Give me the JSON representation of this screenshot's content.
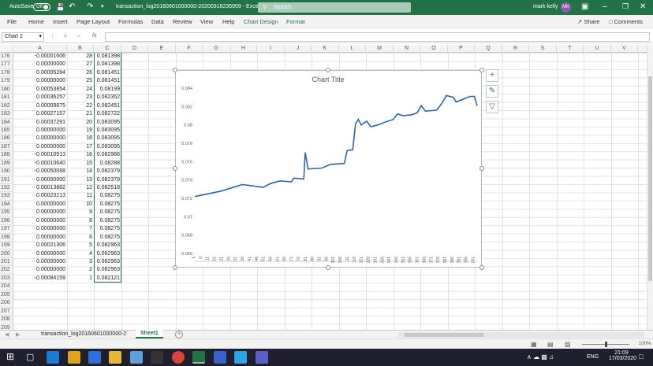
{
  "titlebar": {
    "autosave": "AutoSave",
    "autosave_state": "Off",
    "filename": "transaction_log20160601000000-20200318235959  -  Excel",
    "search": "Search",
    "user": "mark kelly",
    "user_initials": "MK"
  },
  "ribbon": {
    "tabs": [
      "File",
      "Home",
      "Insert",
      "Page Layout",
      "Formulas",
      "Data",
      "Review",
      "View",
      "Help",
      "Chart Design",
      "Format"
    ],
    "share": "Share",
    "comments": "Comments"
  },
  "formula_bar": {
    "name_box": "Chart 2",
    "fx": "fx",
    "value": ""
  },
  "columns": [
    "A",
    "B",
    "C",
    "D",
    "E",
    "F",
    "G",
    "H",
    "I",
    "J",
    "K",
    "L",
    "M",
    "N",
    "O",
    "P",
    "Q",
    "R",
    "S",
    "T",
    "U",
    "V"
  ],
  "rows": [
    {
      "n": "176",
      "a": "-0.00001606",
      "b": "28",
      "c": "0.081398"
    },
    {
      "n": "177",
      "a": "0.00000000",
      "b": "27",
      "c": "0.081398"
    },
    {
      "n": "178",
      "a": "0.00005284",
      "b": "26",
      "c": "0.081451"
    },
    {
      "n": "179",
      "a": "0.00000000",
      "b": "25",
      "c": "0.081451"
    },
    {
      "n": "180",
      "a": "0.00053854",
      "b": "24",
      "c": "0.08199"
    },
    {
      "n": "181",
      "a": "0.00036257",
      "b": "23",
      "c": "0.082352"
    },
    {
      "n": "182",
      "a": "0.00009875",
      "b": "22",
      "c": "0.082451"
    },
    {
      "n": "183",
      "a": "0.00027157",
      "b": "21",
      "c": "0.082722"
    },
    {
      "n": "184",
      "a": "0.00037291",
      "b": "20",
      "c": "0.083095"
    },
    {
      "n": "185",
      "a": "0.00000000",
      "b": "19",
      "c": "0.083095"
    },
    {
      "n": "186",
      "a": "0.00000000",
      "b": "18",
      "c": "0.083095"
    },
    {
      "n": "187",
      "a": "0.00000000",
      "b": "17",
      "c": "0.083095"
    },
    {
      "n": "188",
      "a": "-0.00010913",
      "b": "16",
      "c": "0.082986"
    },
    {
      "n": "189",
      "a": "-0.00010640",
      "b": "15",
      "c": "0.08288"
    },
    {
      "n": "190",
      "a": "-0.00050088",
      "b": "14",
      "c": "0.082379"
    },
    {
      "n": "191",
      "a": "0.00000000",
      "b": "13",
      "c": "0.082379"
    },
    {
      "n": "192",
      "a": "0.00013882",
      "b": "12",
      "c": "0.082518"
    },
    {
      "n": "193",
      "a": "0.00023213",
      "b": "11",
      "c": "0.08275"
    },
    {
      "n": "194",
      "a": "0.00000000",
      "b": "10",
      "c": "0.08275"
    },
    {
      "n": "195",
      "a": "0.00000000",
      "b": "9",
      "c": "0.08275"
    },
    {
      "n": "196",
      "a": "0.00000000",
      "b": "8",
      "c": "0.08275"
    },
    {
      "n": "197",
      "a": "0.00000000",
      "b": "7",
      "c": "0.08275"
    },
    {
      "n": "198",
      "a": "0.00000000",
      "b": "6",
      "c": "0.08275"
    },
    {
      "n": "199",
      "a": "0.00021306",
      "b": "5",
      "c": "0.082963"
    },
    {
      "n": "200",
      "a": "0.00000000",
      "b": "4",
      "c": "0.082963"
    },
    {
      "n": "201",
      "a": "0.00000000",
      "b": "3",
      "c": "0.082963"
    },
    {
      "n": "202",
      "a": "0.00000000",
      "b": "2",
      "c": "0.082963"
    },
    {
      "n": "203",
      "a": "-0.00084159",
      "b": "1",
      "c": "0.082121"
    },
    {
      "n": "204",
      "a": "",
      "b": "",
      "c": ""
    },
    {
      "n": "205",
      "a": "",
      "b": "",
      "c": ""
    },
    {
      "n": "206",
      "a": "",
      "b": "",
      "c": ""
    },
    {
      "n": "207",
      "a": "",
      "b": "",
      "c": ""
    },
    {
      "n": "208",
      "a": "",
      "b": "",
      "c": ""
    },
    {
      "n": "209",
      "a": "",
      "b": "",
      "c": ""
    }
  ],
  "chart_data": {
    "type": "line",
    "title": "Chart Title",
    "xlabel": "",
    "ylabel": "",
    "ylim": [
      0.066,
      0.084
    ],
    "yticks": [
      "0.066",
      "0.068",
      "0.07",
      "0.072",
      "0.074",
      "0.076",
      "0.078",
      "0.08",
      "0.082",
      "0.084"
    ],
    "xticks": [
      "1",
      "6",
      "11",
      "16",
      "21",
      "26",
      "31",
      "36",
      "41",
      "46",
      "51",
      "56",
      "61",
      "66",
      "71",
      "76",
      "81",
      "86",
      "91",
      "96",
      "101",
      "106",
      "111",
      "116",
      "121",
      "126",
      "131",
      "136",
      "141",
      "146",
      "151",
      "156",
      "161",
      "166",
      "171",
      "176",
      "181",
      "186",
      "191",
      "196",
      "201"
    ],
    "grid": false,
    "legend": "none",
    "color": "#2e64a8",
    "points": [
      [
        1,
        0.0722
      ],
      [
        20,
        0.0728
      ],
      [
        35,
        0.0735
      ],
      [
        45,
        0.0733
      ],
      [
        50,
        0.0732
      ],
      [
        55,
        0.0736
      ],
      [
        62,
        0.0739
      ],
      [
        70,
        0.0738
      ],
      [
        72,
        0.0742
      ],
      [
        79,
        0.0741
      ],
      [
        80,
        0.077
      ],
      [
        82,
        0.0752
      ],
      [
        92,
        0.0753
      ],
      [
        98,
        0.0757
      ],
      [
        108,
        0.0758
      ],
      [
        110,
        0.0772
      ],
      [
        114,
        0.0773
      ],
      [
        116,
        0.0801
      ],
      [
        118,
        0.0806
      ],
      [
        120,
        0.08
      ],
      [
        124,
        0.0804
      ],
      [
        127,
        0.0798
      ],
      [
        132,
        0.08
      ],
      [
        137,
        0.0803
      ],
      [
        143,
        0.0806
      ],
      [
        146,
        0.0812
      ],
      [
        150,
        0.081
      ],
      [
        156,
        0.0811
      ],
      [
        160,
        0.0813
      ],
      [
        163,
        0.0821
      ],
      [
        166,
        0.0815
      ],
      [
        174,
        0.0816
      ],
      [
        178,
        0.0824
      ],
      [
        181,
        0.0832
      ],
      [
        186,
        0.083
      ],
      [
        188,
        0.0825
      ],
      [
        193,
        0.0828
      ],
      [
        198,
        0.0831
      ],
      [
        201,
        0.0831
      ],
      [
        203,
        0.0821
      ]
    ]
  },
  "sheets": {
    "inactive": "transaction_log20160601000000-2",
    "active": "Sheet1"
  },
  "statusbar": {
    "zoom": "100%"
  },
  "taskbar": {
    "lang": "ENG",
    "time": "21:09",
    "date": "17/03/2020"
  }
}
